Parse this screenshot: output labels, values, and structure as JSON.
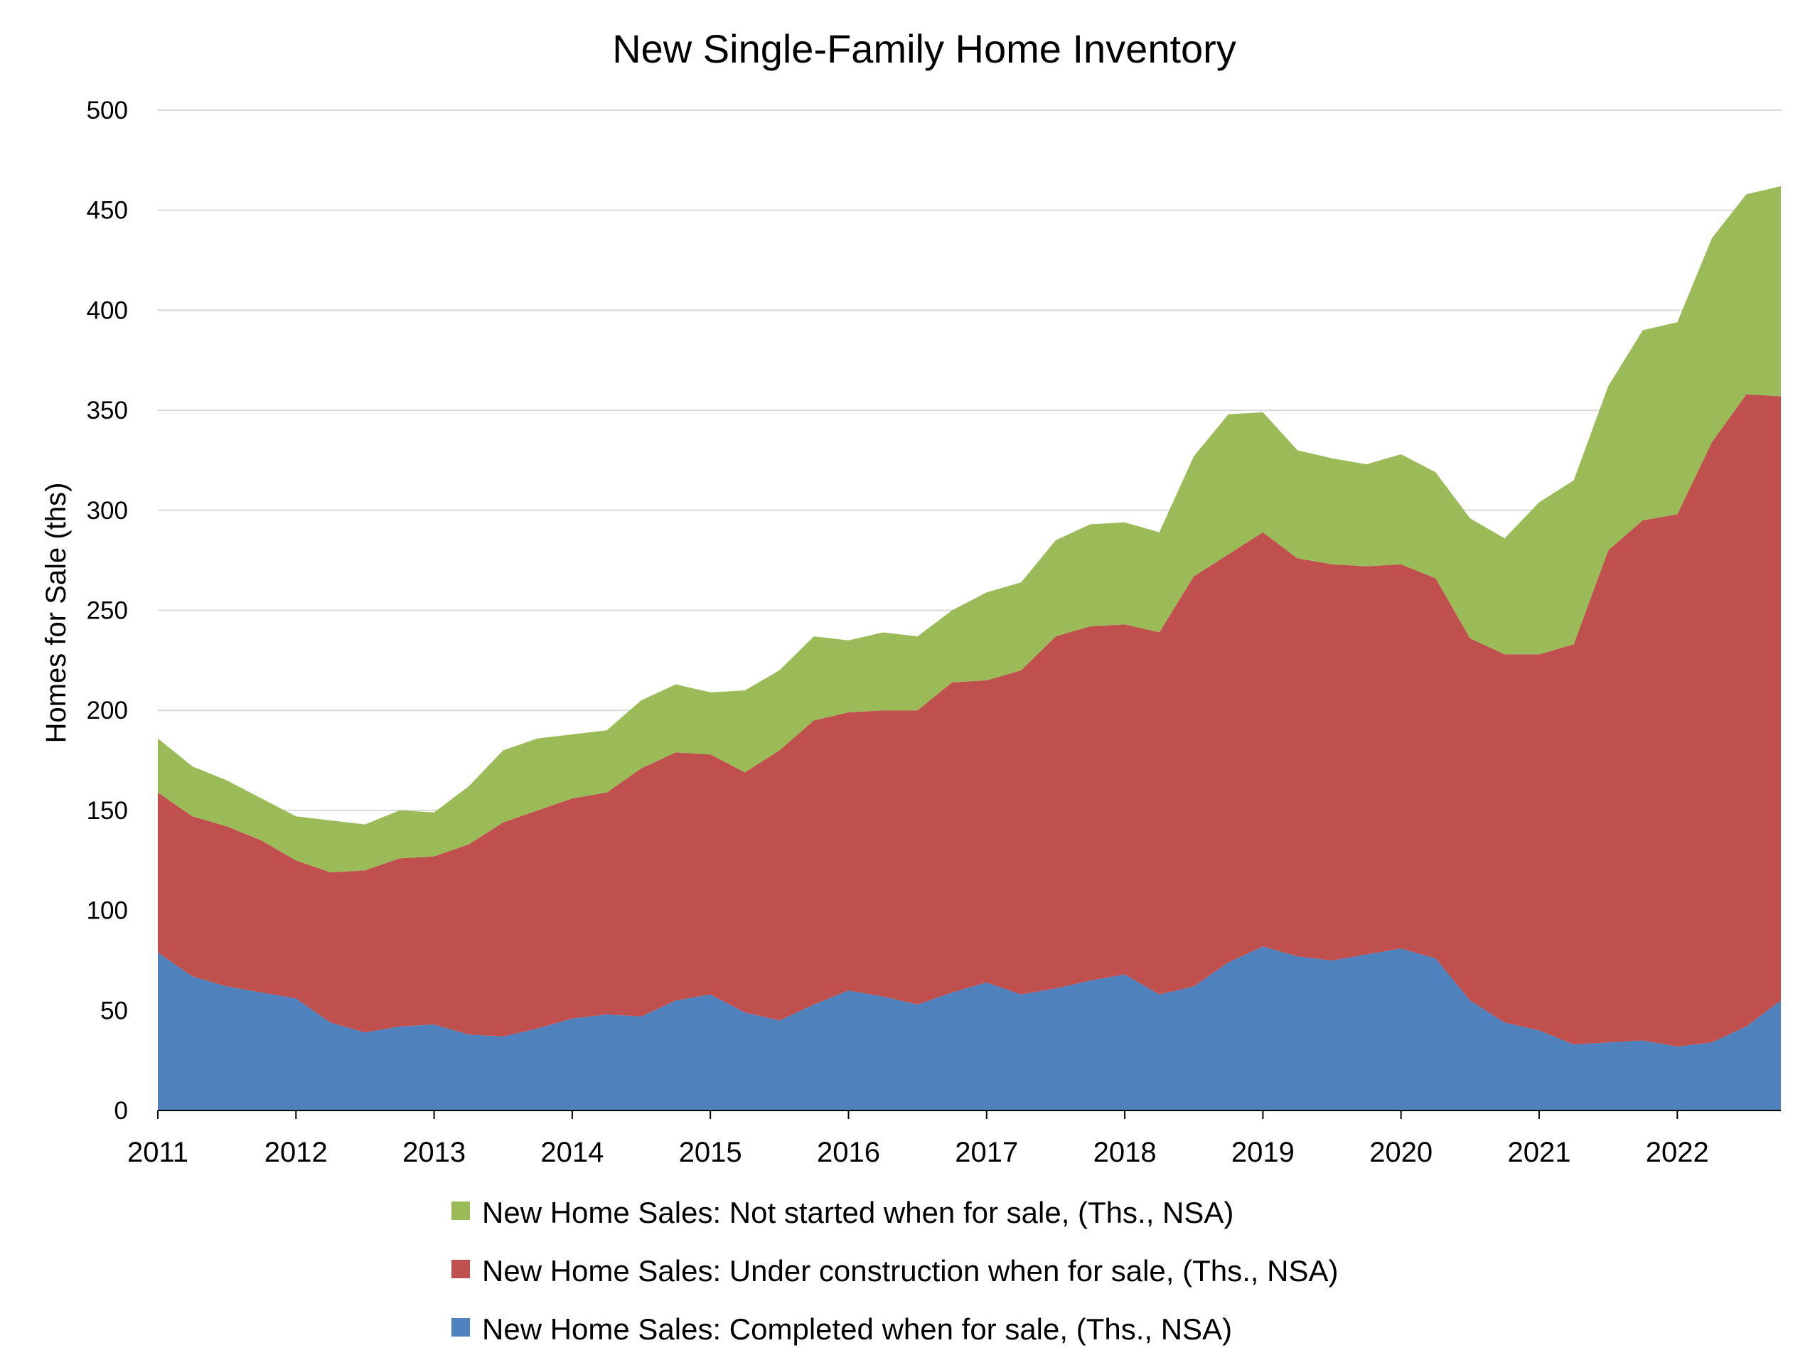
{
  "chart_data": {
    "type": "area",
    "stacked": true,
    "title": "New Single-Family Home Inventory",
    "xlabel": "",
    "ylabel": "Homes for Sale (ths)",
    "ylim": [
      0,
      500
    ],
    "yticks": [
      0,
      50,
      100,
      150,
      200,
      250,
      300,
      350,
      400,
      450,
      500
    ],
    "xlim": [
      2011,
      2022.75
    ],
    "xticks": [
      2011,
      2012,
      2013,
      2014,
      2015,
      2016,
      2017,
      2018,
      2019,
      2020,
      2021,
      2022
    ],
    "grid": true,
    "legend_position": "bottom",
    "colors": {
      "completed": "#4f81bd",
      "under_construction": "#c0504d",
      "not_started": "#9bbb59"
    },
    "x": [
      2011,
      2011.25,
      2011.5,
      2011.75,
      2012,
      2012.25,
      2012.5,
      2012.75,
      2013,
      2013.25,
      2013.5,
      2013.75,
      2014,
      2014.25,
      2014.5,
      2014.75,
      2015,
      2015.25,
      2015.5,
      2015.75,
      2016,
      2016.25,
      2016.5,
      2016.75,
      2017,
      2017.25,
      2017.5,
      2017.75,
      2018,
      2018.25,
      2018.5,
      2018.75,
      2019,
      2019.25,
      2019.5,
      2019.75,
      2020,
      2020.25,
      2020.5,
      2020.75,
      2021,
      2021.25,
      2021.5,
      2021.75,
      2022,
      2022.25,
      2022.5,
      2022.75
    ],
    "series": [
      {
        "name": "New Home Sales: Completed when for sale, (Ths., NSA)",
        "key": "completed",
        "values": [
          79,
          67,
          62,
          59,
          56,
          44,
          39,
          42,
          43,
          38,
          37,
          41,
          46,
          48,
          47,
          55,
          58,
          49,
          45,
          53,
          60,
          57,
          53,
          59,
          64,
          58,
          61,
          65,
          68,
          58,
          62,
          74,
          82,
          77,
          75,
          78,
          81,
          76,
          55,
          44,
          40,
          33,
          34,
          35,
          32,
          34,
          42,
          55
        ]
      },
      {
        "name": "New Home Sales: Under construction when for sale, (Ths., NSA)",
        "key": "under_construction",
        "values": [
          80,
          80,
          80,
          76,
          69,
          75,
          81,
          84,
          84,
          95,
          107,
          109,
          110,
          111,
          124,
          124,
          120,
          120,
          135,
          142,
          139,
          143,
          147,
          155,
          151,
          162,
          176,
          177,
          175,
          181,
          205,
          204,
          207,
          199,
          198,
          194,
          192,
          190,
          181,
          184,
          188,
          200,
          246,
          260,
          266,
          300,
          316,
          302
        ]
      },
      {
        "name": "New Home Sales: Not started when for sale, (Ths., NSA)",
        "key": "not_started",
        "values": [
          27,
          25,
          23,
          21,
          22,
          26,
          23,
          24,
          22,
          29,
          36,
          36,
          32,
          31,
          34,
          34,
          31,
          41,
          40,
          42,
          36,
          39,
          37,
          36,
          44,
          44,
          48,
          51,
          51,
          50,
          60,
          70,
          60,
          54,
          53,
          51,
          55,
          53,
          60,
          58,
          76,
          82,
          82,
          95,
          96,
          102,
          100,
          105
        ]
      }
    ]
  }
}
